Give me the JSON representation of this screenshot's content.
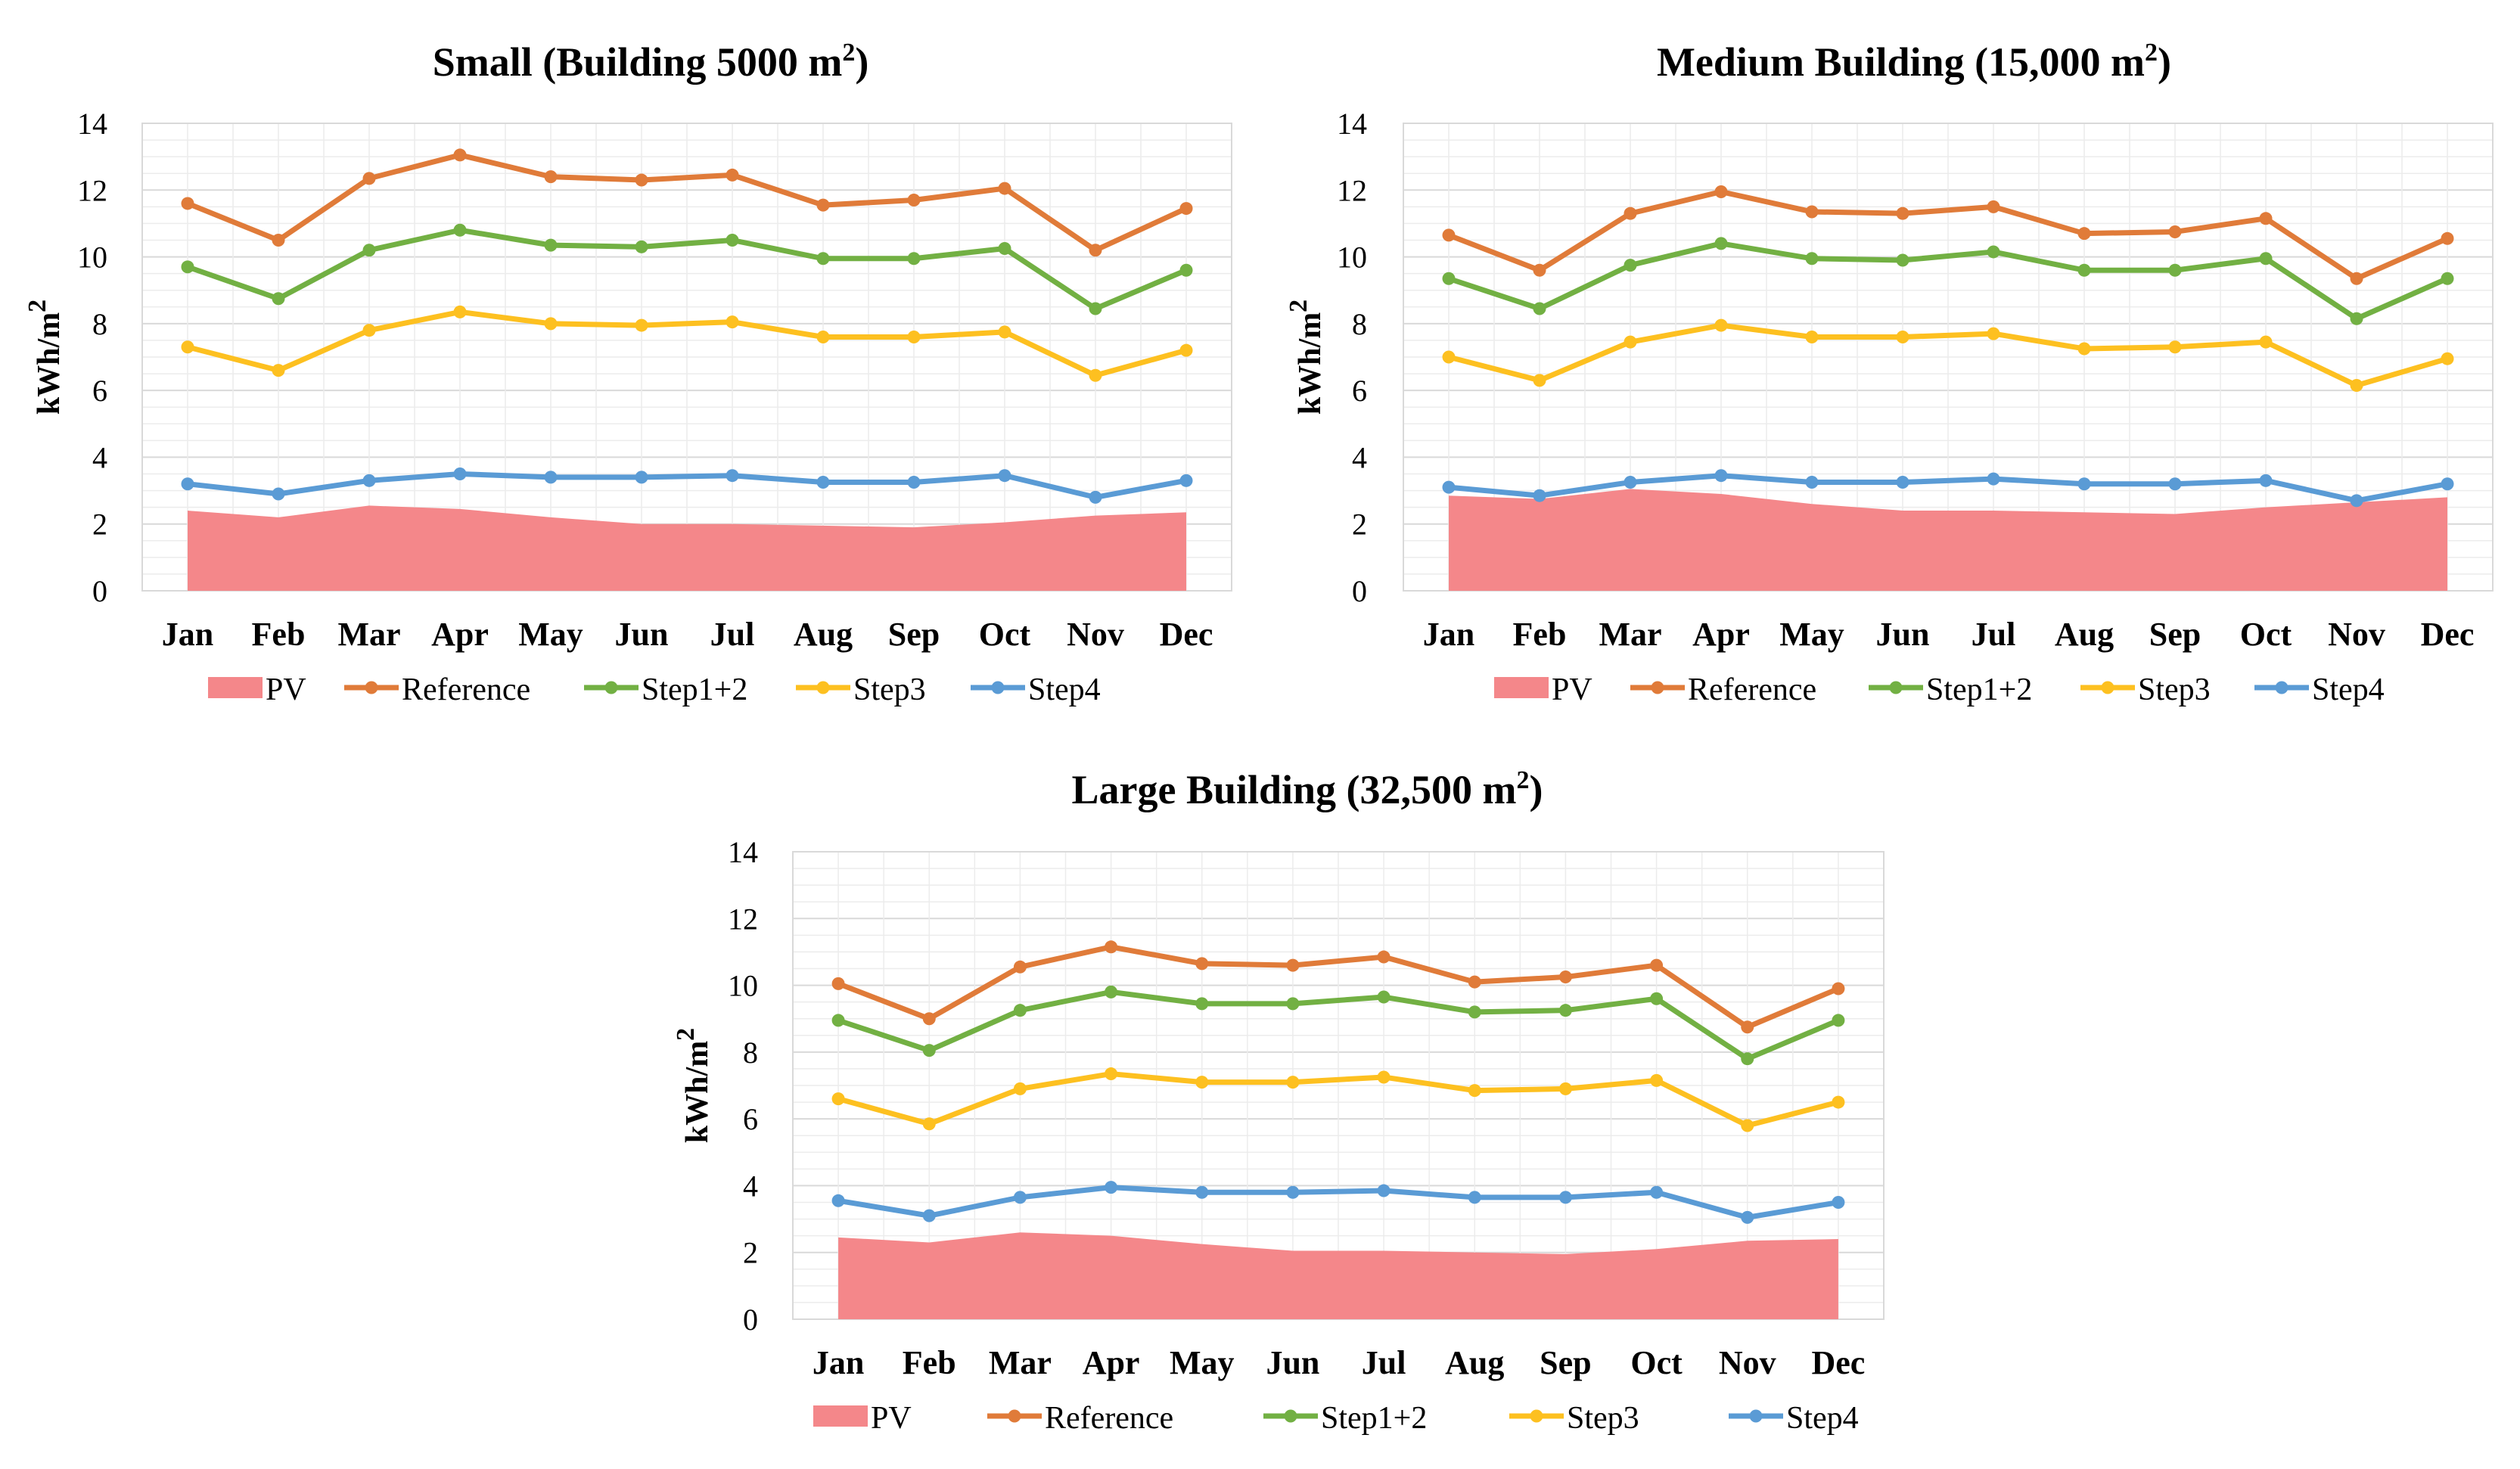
{
  "chart_data": [
    {
      "type": "line",
      "title": "Small (Building 5000 m²)",
      "title_main": "Small (Building 5000 m",
      "title_sup": "2",
      "title_end": ")",
      "ylabel": "kWh/m²",
      "ylabel_main": "kWh/m",
      "ylabel_sup": "2",
      "xlabel": "",
      "ylim": [
        0,
        14
      ],
      "yticks": [
        0,
        2,
        4,
        6,
        8,
        10,
        12,
        14
      ],
      "categories": [
        "Jan",
        "Feb",
        "Mar",
        "Apr",
        "May",
        "Jun",
        "Jul",
        "Aug",
        "Sep",
        "Oct",
        "Nov",
        "Dec"
      ],
      "series": [
        {
          "name": "PV",
          "kind": "area",
          "color": "#f4878a",
          "values": [
            2.4,
            2.2,
            2.55,
            2.45,
            2.2,
            2.0,
            2.0,
            1.95,
            1.9,
            2.05,
            2.25,
            2.35
          ]
        },
        {
          "name": "Reference",
          "kind": "line",
          "color": "#e07b39",
          "values": [
            11.6,
            10.5,
            12.35,
            13.05,
            12.4,
            12.3,
            12.45,
            11.55,
            11.7,
            12.05,
            10.2,
            11.45
          ]
        },
        {
          "name": "Step1+2",
          "kind": "line",
          "color": "#72b043",
          "values": [
            9.7,
            8.75,
            10.2,
            10.8,
            10.35,
            10.3,
            10.5,
            9.95,
            9.95,
            10.25,
            8.45,
            9.6
          ]
        },
        {
          "name": "Step3",
          "kind": "line",
          "color": "#fdc020",
          "values": [
            7.3,
            6.6,
            7.8,
            8.35,
            8.0,
            7.95,
            8.05,
            7.6,
            7.6,
            7.75,
            6.45,
            7.2
          ]
        },
        {
          "name": "Step4",
          "kind": "line",
          "color": "#5a9bd5",
          "values": [
            3.2,
            2.9,
            3.3,
            3.5,
            3.4,
            3.4,
            3.45,
            3.25,
            3.25,
            3.45,
            2.8,
            3.3
          ]
        }
      ],
      "legend": "bottom",
      "grid": true
    },
    {
      "type": "line",
      "title": "Medium Building (15,000 m²)",
      "title_main": "Medium Building (15,000 m",
      "title_sup": "2",
      "title_end": ")",
      "ylabel": "kWh/m²",
      "ylabel_main": "kWh/m",
      "ylabel_sup": "2",
      "xlabel": "",
      "ylim": [
        0,
        14
      ],
      "yticks": [
        0,
        2,
        4,
        6,
        8,
        10,
        12,
        14
      ],
      "categories": [
        "Jan",
        "Feb",
        "Mar",
        "Apr",
        "May",
        "Jun",
        "Jul",
        "Aug",
        "Sep",
        "Oct",
        "Nov",
        "Dec"
      ],
      "series": [
        {
          "name": "PV",
          "kind": "area",
          "color": "#f4878a",
          "values": [
            2.85,
            2.75,
            3.05,
            2.9,
            2.6,
            2.4,
            2.4,
            2.35,
            2.3,
            2.5,
            2.65,
            2.8
          ]
        },
        {
          "name": "Reference",
          "kind": "line",
          "color": "#e07b39",
          "values": [
            10.65,
            9.6,
            11.3,
            11.95,
            11.35,
            11.3,
            11.5,
            10.7,
            10.75,
            11.15,
            9.35,
            10.55
          ]
        },
        {
          "name": "Step1+2",
          "kind": "line",
          "color": "#72b043",
          "values": [
            9.35,
            8.45,
            9.75,
            10.4,
            9.95,
            9.9,
            10.15,
            9.6,
            9.6,
            9.95,
            8.15,
            9.35
          ]
        },
        {
          "name": "Step3",
          "kind": "line",
          "color": "#fdc020",
          "values": [
            7.0,
            6.3,
            7.45,
            7.95,
            7.6,
            7.6,
            7.7,
            7.25,
            7.3,
            7.45,
            6.15,
            6.95
          ]
        },
        {
          "name": "Step4",
          "kind": "line",
          "color": "#5a9bd5",
          "values": [
            3.1,
            2.85,
            3.25,
            3.45,
            3.25,
            3.25,
            3.35,
            3.2,
            3.2,
            3.3,
            2.7,
            3.2
          ]
        }
      ],
      "legend": "bottom",
      "grid": true
    },
    {
      "type": "line",
      "title": "Large Building (32,500 m²)",
      "title_main": "Large Building (32,500 m",
      "title_sup": "2",
      "title_end": ")",
      "ylabel": "kWh/m²",
      "ylabel_main": "kWh/m",
      "ylabel_sup": "2",
      "xlabel": "",
      "ylim": [
        0,
        14
      ],
      "yticks": [
        0,
        2,
        4,
        6,
        8,
        10,
        12,
        14
      ],
      "categories": [
        "Jan",
        "Feb",
        "Mar",
        "Apr",
        "May",
        "Jun",
        "Jul",
        "Aug",
        "Sep",
        "Oct",
        "Nov",
        "Dec"
      ],
      "series": [
        {
          "name": "PV",
          "kind": "area",
          "color": "#f4878a",
          "values": [
            2.45,
            2.3,
            2.6,
            2.5,
            2.25,
            2.05,
            2.05,
            2.0,
            1.95,
            2.1,
            2.35,
            2.4
          ]
        },
        {
          "name": "Reference",
          "kind": "line",
          "color": "#e07b39",
          "values": [
            10.05,
            9.0,
            10.55,
            11.15,
            10.65,
            10.6,
            10.85,
            10.1,
            10.25,
            10.6,
            8.75,
            9.9
          ]
        },
        {
          "name": "Step1+2",
          "kind": "line",
          "color": "#72b043",
          "values": [
            8.95,
            8.05,
            9.25,
            9.8,
            9.45,
            9.45,
            9.65,
            9.2,
            9.25,
            9.6,
            7.8,
            8.95
          ]
        },
        {
          "name": "Step3",
          "kind": "line",
          "color": "#fdc020",
          "values": [
            6.6,
            5.85,
            6.9,
            7.35,
            7.1,
            7.1,
            7.25,
            6.85,
            6.9,
            7.15,
            5.8,
            6.5
          ]
        },
        {
          "name": "Step4",
          "kind": "line",
          "color": "#5a9bd5",
          "values": [
            3.55,
            3.1,
            3.65,
            3.95,
            3.8,
            3.8,
            3.85,
            3.65,
            3.65,
            3.8,
            3.05,
            3.5
          ]
        }
      ],
      "legend": "bottom",
      "grid": true
    }
  ]
}
